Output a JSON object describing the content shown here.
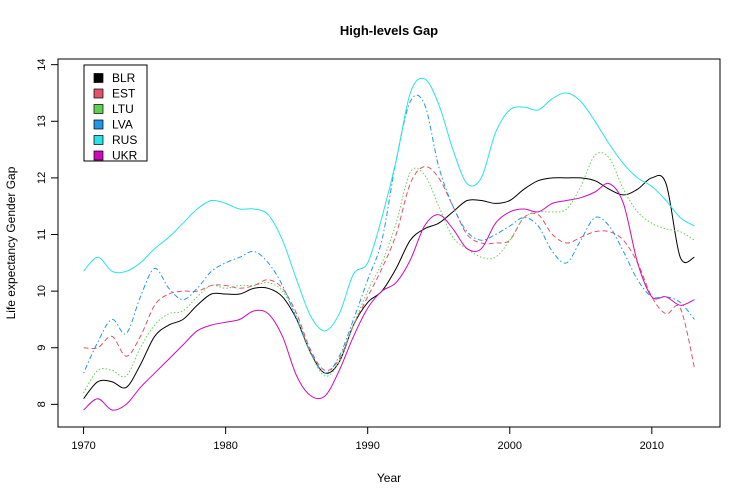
{
  "chart_data": {
    "type": "line",
    "title": "High-levels Gap",
    "xlabel": "Year",
    "ylabel": "Life expectancy Gender Gap",
    "xlim": [
      1968.2,
      2014.8
    ],
    "ylim": [
      7.6,
      14.1
    ],
    "xticks": [
      1970,
      1980,
      1990,
      2000,
      2010
    ],
    "yticks": [
      8,
      9,
      10,
      11,
      12,
      13,
      14
    ],
    "grid": false,
    "legend_position": "top-left",
    "series": [
      {
        "name": "BLR",
        "color": "#000000",
        "dash": "solid",
        "x": [
          1970,
          1971,
          1972,
          1973,
          1974,
          1975,
          1976,
          1977,
          1978,
          1979,
          1980,
          1981,
          1982,
          1983,
          1984,
          1985,
          1986,
          1987,
          1988,
          1989,
          1990,
          1991,
          1992,
          1993,
          1994,
          1995,
          1996,
          1997,
          1998,
          1999,
          2000,
          2001,
          2002,
          2003,
          2004,
          2005,
          2006,
          2007,
          2008,
          2009,
          2010,
          2011,
          2012,
          2013
        ],
        "y": [
          8.1,
          8.4,
          8.4,
          8.3,
          8.7,
          9.2,
          9.4,
          9.5,
          9.75,
          9.95,
          9.95,
          9.95,
          10.05,
          10.05,
          9.9,
          9.5,
          8.9,
          8.55,
          8.75,
          9.4,
          9.8,
          10.0,
          10.4,
          10.9,
          11.1,
          11.2,
          11.4,
          11.6,
          11.6,
          11.55,
          11.6,
          11.8,
          11.95,
          12.0,
          12.0,
          12.0,
          11.95,
          11.8,
          11.7,
          11.8,
          12.0,
          11.9,
          10.6,
          10.6
        ]
      },
      {
        "name": "EST",
        "color": "#DF536B",
        "dash": "dashed",
        "x": [
          1970,
          1971,
          1972,
          1973,
          1974,
          1975,
          1976,
          1977,
          1978,
          1979,
          1980,
          1981,
          1982,
          1983,
          1984,
          1985,
          1986,
          1987,
          1988,
          1989,
          1990,
          1991,
          1992,
          1993,
          1994,
          1995,
          1996,
          1997,
          1998,
          1999,
          2000,
          2001,
          2002,
          2003,
          2004,
          2005,
          2006,
          2007,
          2008,
          2009,
          2010,
          2011,
          2012,
          2013
        ],
        "y": [
          9.0,
          9.0,
          9.2,
          8.85,
          9.2,
          9.75,
          9.95,
          10.0,
          10.0,
          10.1,
          10.1,
          10.05,
          10.1,
          10.2,
          10.05,
          9.6,
          8.95,
          8.6,
          8.8,
          9.4,
          9.9,
          10.4,
          11.0,
          11.9,
          12.2,
          12.0,
          11.5,
          11.0,
          10.85,
          10.85,
          10.9,
          11.3,
          11.35,
          11.0,
          10.85,
          10.95,
          11.05,
          11.05,
          10.9,
          10.5,
          9.9,
          9.6,
          9.7,
          8.65
        ]
      },
      {
        "name": "LTU",
        "color": "#61D04F",
        "dash": "dotted",
        "x": [
          1970,
          1971,
          1972,
          1973,
          1974,
          1975,
          1976,
          1977,
          1978,
          1979,
          1980,
          1981,
          1982,
          1983,
          1984,
          1985,
          1986,
          1987,
          1988,
          1989,
          1990,
          1991,
          1992,
          1993,
          1994,
          1995,
          1996,
          1997,
          1998,
          1999,
          2000,
          2001,
          2002,
          2003,
          2004,
          2005,
          2006,
          2007,
          2008,
          2009,
          2010,
          2011,
          2012,
          2013
        ],
        "y": [
          8.2,
          8.6,
          8.6,
          8.5,
          9.0,
          9.4,
          9.6,
          9.65,
          9.9,
          10.1,
          10.05,
          10.1,
          10.1,
          10.15,
          10.0,
          9.55,
          8.9,
          8.5,
          8.75,
          9.4,
          10.0,
          10.5,
          11.2,
          12.1,
          12.05,
          11.5,
          10.95,
          10.75,
          10.6,
          10.6,
          10.9,
          11.3,
          11.4,
          11.4,
          11.45,
          11.85,
          12.4,
          12.35,
          11.8,
          11.4,
          11.2,
          11.1,
          11.05,
          10.9
        ]
      },
      {
        "name": "LVA",
        "color": "#2297E6",
        "dash": "dotdash",
        "x": [
          1970,
          1971,
          1972,
          1973,
          1974,
          1975,
          1976,
          1977,
          1978,
          1979,
          1980,
          1981,
          1982,
          1983,
          1984,
          1985,
          1986,
          1987,
          1988,
          1989,
          1990,
          1991,
          1992,
          1993,
          1994,
          1995,
          1996,
          1997,
          1998,
          1999,
          2000,
          2001,
          2002,
          2003,
          2004,
          2005,
          2006,
          2007,
          2008,
          2009,
          2010,
          2011,
          2012,
          2013
        ],
        "y": [
          8.55,
          9.1,
          9.5,
          9.25,
          9.9,
          10.4,
          10.05,
          9.85,
          10.05,
          10.35,
          10.5,
          10.6,
          10.7,
          10.5,
          10.1,
          9.5,
          8.9,
          8.55,
          8.85,
          9.5,
          10.2,
          10.9,
          12.3,
          13.35,
          13.3,
          12.2,
          11.5,
          11.05,
          10.9,
          11.0,
          11.15,
          11.3,
          11.15,
          10.7,
          10.5,
          10.9,
          11.3,
          11.15,
          10.7,
          10.2,
          9.9,
          9.9,
          9.8,
          9.5
        ]
      },
      {
        "name": "RUS",
        "color": "#28E2E5",
        "dash": "solid",
        "x": [
          1970,
          1971,
          1972,
          1973,
          1974,
          1975,
          1976,
          1977,
          1978,
          1979,
          1980,
          1981,
          1982,
          1983,
          1984,
          1985,
          1986,
          1987,
          1988,
          1989,
          1990,
          1991,
          1992,
          1993,
          1994,
          1995,
          1996,
          1997,
          1998,
          1999,
          2000,
          2001,
          2002,
          2003,
          2004,
          2005,
          2006,
          2007,
          2008,
          2009,
          2010,
          2011,
          2012,
          2013
        ],
        "y": [
          10.35,
          10.6,
          10.35,
          10.35,
          10.5,
          10.75,
          10.95,
          11.2,
          11.45,
          11.6,
          11.55,
          11.45,
          11.45,
          11.35,
          10.9,
          10.2,
          9.55,
          9.3,
          9.6,
          10.3,
          10.5,
          11.3,
          12.3,
          13.5,
          13.75,
          13.3,
          12.5,
          11.9,
          12.0,
          12.8,
          13.2,
          13.25,
          13.2,
          13.4,
          13.5,
          13.35,
          13.0,
          12.6,
          12.25,
          12.0,
          11.85,
          11.6,
          11.3,
          11.15
        ]
      },
      {
        "name": "UKR",
        "color": "#CD0BBC",
        "dash": "solid",
        "x": [
          1970,
          1971,
          1972,
          1973,
          1974,
          1975,
          1976,
          1977,
          1978,
          1979,
          1980,
          1981,
          1982,
          1983,
          1984,
          1985,
          1986,
          1987,
          1988,
          1989,
          1990,
          1991,
          1992,
          1993,
          1994,
          1995,
          1996,
          1997,
          1998,
          1999,
          2000,
          2001,
          2002,
          2003,
          2004,
          2005,
          2006,
          2007,
          2008,
          2009,
          2010,
          2011,
          2012,
          2013
        ],
        "y": [
          7.9,
          8.1,
          7.9,
          8.0,
          8.3,
          8.55,
          8.8,
          9.05,
          9.3,
          9.4,
          9.45,
          9.5,
          9.65,
          9.6,
          9.2,
          8.5,
          8.15,
          8.15,
          8.6,
          9.2,
          9.7,
          10.0,
          10.15,
          10.55,
          11.15,
          11.35,
          11.1,
          10.75,
          10.75,
          11.2,
          11.4,
          11.45,
          11.4,
          11.55,
          11.6,
          11.65,
          11.75,
          11.9,
          11.55,
          10.5,
          9.9,
          9.9,
          9.75,
          9.85
        ]
      }
    ]
  }
}
